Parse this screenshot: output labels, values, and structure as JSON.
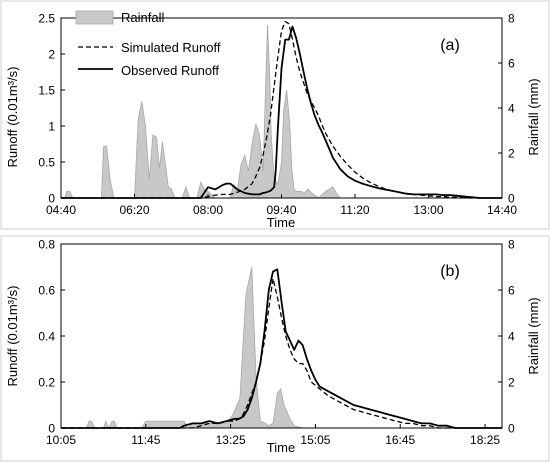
{
  "legend": {
    "rainfall": "Rainfall",
    "simulated": "Simulated Runoff",
    "observed": "Observed Runoff"
  },
  "colors": {
    "rainfall_fill": "#c8c8c8",
    "rainfall_stroke": "#a8a8a8",
    "line": "#000000"
  },
  "chart_data": [
    {
      "type": "area",
      "panel": "(a)",
      "legend_placement": "top-left",
      "xlabel": "Time",
      "ylabel_left": "Runoff (0.01m³/s)",
      "ylabel_right": "Rainfall (mm)",
      "x_ticks": [
        "04:40",
        "06:20",
        "08:00",
        "09:40",
        "11:20",
        "13:00",
        "14:40"
      ],
      "x_tick_minutes": [
        280,
        380,
        480,
        580,
        680,
        780,
        880
      ],
      "x_range": [
        280,
        880
      ],
      "y_left_ticks": [
        "0",
        "0.5",
        "1",
        "1.5",
        "2",
        "2.5"
      ],
      "y_left_range": [
        0,
        2.5
      ],
      "y_right_ticks": [
        "0",
        "2",
        "4",
        "6",
        "8"
      ],
      "y_right_range": [
        0,
        8
      ],
      "series": [
        {
          "name": "Rainfall",
          "axis": "right",
          "x": [
            285,
            288,
            292,
            296,
            335,
            338,
            342,
            347,
            352,
            380,
            385,
            390,
            395,
            400,
            405,
            410,
            414,
            418,
            422,
            426,
            430,
            435,
            440,
            445,
            450,
            455,
            465,
            470,
            475,
            480,
            490,
            510,
            515,
            520,
            525,
            530,
            535,
            540,
            545,
            550,
            555,
            558,
            561,
            564,
            566,
            570,
            575,
            580,
            583,
            587,
            591,
            594,
            597,
            600,
            603,
            607,
            611,
            616,
            622,
            630,
            640,
            650,
            655,
            660
          ],
          "y": [
            0,
            0.3,
            0.3,
            0,
            0,
            2.3,
            2.3,
            0.8,
            0,
            0,
            3.5,
            4.3,
            3.2,
            0.8,
            2.8,
            2.7,
            1.3,
            2.5,
            1.5,
            0.5,
            0.4,
            0,
            0,
            0,
            0.5,
            0,
            0,
            0.7,
            0.4,
            0.3,
            0,
            0,
            0.6,
            0.4,
            1.5,
            1.9,
            1.2,
            2.4,
            3.3,
            2.8,
            1.2,
            4.5,
            7.7,
            5.5,
            2.8,
            0.9,
            0.6,
            1.6,
            3.9,
            4.8,
            3.4,
            1.3,
            0.4,
            0.3,
            0.3,
            0.3,
            0.2,
            0.4,
            0.2,
            0,
            0.3,
            0.5,
            0.2,
            0
          ]
        },
        {
          "name": "Simulated Runoff",
          "axis": "left",
          "x": [
            280,
            470,
            480,
            490,
            500,
            510,
            520,
            530,
            540,
            545,
            550,
            555,
            560,
            565,
            570,
            575,
            580,
            585,
            590,
            595,
            600,
            605,
            610,
            615,
            620,
            625,
            630,
            635,
            640,
            650,
            660,
            670,
            680,
            690,
            700,
            710,
            720,
            730,
            740,
            750,
            760,
            770,
            780,
            790,
            800,
            810,
            820,
            830,
            840,
            850,
            860,
            870,
            880
          ],
          "y": [
            0,
            0,
            0.02,
            0.04,
            0.05,
            0.05,
            0.08,
            0.12,
            0.2,
            0.3,
            0.42,
            0.6,
            0.85,
            1.15,
            1.55,
            1.95,
            2.32,
            2.45,
            2.42,
            2.2,
            1.95,
            1.75,
            1.6,
            1.45,
            1.35,
            1.25,
            1.15,
            1.02,
            0.9,
            0.72,
            0.58,
            0.46,
            0.36,
            0.28,
            0.22,
            0.17,
            0.13,
            0.1,
            0.08,
            0.06,
            0.05,
            0.04,
            0.03,
            0.02,
            0.02,
            0.01,
            0.01,
            0,
            0,
            0,
            0,
            0,
            0
          ]
        },
        {
          "name": "Observed Runoff",
          "axis": "left",
          "x": [
            280,
            470,
            480,
            490,
            495,
            500,
            505,
            510,
            520,
            530,
            540,
            545,
            550,
            555,
            560,
            565,
            570,
            572,
            575,
            580,
            585,
            590,
            595,
            600,
            605,
            610,
            615,
            620,
            625,
            630,
            635,
            640,
            645,
            650,
            660,
            670,
            680,
            690,
            700,
            710,
            720,
            730,
            740,
            750,
            760,
            770,
            780,
            790,
            800,
            810,
            820,
            830,
            840,
            850,
            860,
            870,
            880
          ],
          "y": [
            0,
            0,
            0.15,
            0.12,
            0.15,
            0.18,
            0.2,
            0.2,
            0.12,
            0.07,
            0.05,
            0.05,
            0.05,
            0.07,
            0.08,
            0.1,
            0.15,
            0.35,
            0.95,
            1.8,
            2.2,
            2.2,
            2.38,
            2.22,
            2.0,
            1.75,
            1.52,
            1.32,
            1.15,
            1.02,
            0.92,
            0.8,
            0.68,
            0.56,
            0.4,
            0.3,
            0.24,
            0.2,
            0.17,
            0.14,
            0.12,
            0.1,
            0.08,
            0.06,
            0.05,
            0.05,
            0.05,
            0.05,
            0.04,
            0.04,
            0.03,
            0.02,
            0.01,
            0,
            0,
            0,
            0
          ]
        }
      ]
    },
    {
      "type": "area",
      "panel": "(b)",
      "xlabel": "Time",
      "ylabel_left": "Runoff (0.01m³/s)",
      "ylabel_right": "Rainfall (mm)",
      "x_ticks": [
        "10:05",
        "11:45",
        "13:25",
        "15:05",
        "16:45",
        "18:25"
      ],
      "x_tick_minutes": [
        605,
        705,
        805,
        905,
        1005,
        1105
      ],
      "x_range": [
        605,
        1125
      ],
      "y_left_ticks": [
        "0",
        "0.2",
        "0.4",
        "0.6",
        "0.8"
      ],
      "y_left_range": [
        0,
        0.8
      ],
      "y_right_ticks": [
        "0",
        "2",
        "4",
        "6",
        "8"
      ],
      "y_right_range": [
        0,
        8
      ],
      "series": [
        {
          "name": "Rainfall",
          "axis": "right",
          "x": [
            635,
            638,
            641,
            645,
            655,
            658,
            661,
            665,
            668,
            671,
            674,
            700,
            705,
            750,
            755,
            760,
            800,
            808,
            816,
            823,
            830,
            835,
            840,
            846,
            850,
            855,
            860,
            864,
            868,
            875,
            880,
            890
          ],
          "y": [
            0,
            0.3,
            0.3,
            0,
            0,
            0.3,
            0,
            0.3,
            0.3,
            0,
            0,
            0,
            0.3,
            0.3,
            0,
            0.2,
            0.2,
            0.6,
            1.3,
            5.8,
            7.0,
            2.2,
            0.3,
            0.2,
            0.1,
            0.2,
            1.5,
            1.7,
            1.0,
            0.4,
            0.1,
            0
          ]
        },
        {
          "name": "Simulated Runoff",
          "axis": "left",
          "x": [
            605,
            760,
            780,
            790,
            800,
            810,
            815,
            820,
            825,
            830,
            835,
            840,
            845,
            850,
            855,
            860,
            865,
            870,
            875,
            880,
            885,
            890,
            895,
            900,
            910,
            920,
            930,
            940,
            950,
            960,
            970,
            980,
            990,
            1000,
            1010,
            1020,
            1030,
            1040,
            1050,
            1060,
            1070,
            1080,
            1125
          ],
          "y": [
            0,
            0,
            0.02,
            0.02,
            0.03,
            0.03,
            0.04,
            0.06,
            0.1,
            0.15,
            0.2,
            0.28,
            0.38,
            0.52,
            0.65,
            0.57,
            0.48,
            0.4,
            0.34,
            0.3,
            0.28,
            0.28,
            0.25,
            0.2,
            0.17,
            0.14,
            0.12,
            0.1,
            0.08,
            0.07,
            0.06,
            0.05,
            0.04,
            0.03,
            0.02,
            0.02,
            0.01,
            0.01,
            0,
            0,
            0,
            0,
            0
          ]
        },
        {
          "name": "Observed Runoff",
          "axis": "left",
          "x": [
            605,
            745,
            750,
            760,
            770,
            780,
            790,
            800,
            810,
            815,
            820,
            825,
            830,
            835,
            840,
            845,
            850,
            855,
            860,
            865,
            870,
            875,
            880,
            885,
            890,
            895,
            900,
            905,
            910,
            920,
            930,
            940,
            950,
            960,
            970,
            980,
            990,
            1000,
            1010,
            1020,
            1030,
            1040,
            1050,
            1060,
            1070,
            1080,
            1125
          ],
          "y": [
            0,
            0,
            0.01,
            0.02,
            0.02,
            0.03,
            0.02,
            0.03,
            0.04,
            0.04,
            0.05,
            0.08,
            0.13,
            0.2,
            0.28,
            0.42,
            0.6,
            0.68,
            0.69,
            0.55,
            0.42,
            0.38,
            0.34,
            0.38,
            0.36,
            0.3,
            0.25,
            0.21,
            0.18,
            0.16,
            0.14,
            0.12,
            0.1,
            0.09,
            0.08,
            0.07,
            0.06,
            0.05,
            0.04,
            0.03,
            0.02,
            0.02,
            0.01,
            0.01,
            0,
            0,
            0
          ]
        }
      ]
    }
  ]
}
